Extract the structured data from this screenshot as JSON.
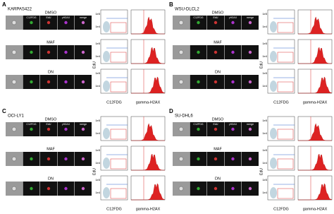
{
  "panels": [
    {
      "letter": "A",
      "cell_line": "KARPAS422",
      "columns": [
        "C12FDG",
        "EdU",
        "γH2AX",
        "merge"
      ],
      "conditions": [
        "DMSO",
        "MAF",
        "DN"
      ],
      "y_axis": "EdU",
      "x_axis": "C12FDG",
      "hist_axis": "gamma-H2AX",
      "y_ticks": [
        "1e5",
        "1e4"
      ]
    },
    {
      "letter": "B",
      "cell_line": "WSU-DLCL2",
      "columns": [
        "C12FDG",
        "EdU",
        "γH2AX",
        "merge"
      ],
      "conditions": [
        "DMSO",
        "MAF",
        "DN"
      ],
      "y_axis": "EdU",
      "x_axis": "C12FDG",
      "hist_axis": "gamma-H2AX",
      "y_ticks": [
        "1e5",
        "1e4"
      ]
    },
    {
      "letter": "C",
      "cell_line": "OCI-LY1",
      "columns": [
        "C12FDG",
        "EdU",
        "γH2AX",
        "merge"
      ],
      "conditions": [
        "DMSO",
        "MAF",
        "DN"
      ],
      "y_axis": "EdU",
      "x_axis": "C12FDG",
      "hist_axis": "gamma-H2AX",
      "y_ticks": [
        "1e5",
        "1e4"
      ]
    },
    {
      "letter": "D",
      "cell_line": "SU-DHL6",
      "columns": [
        "C12FDG",
        "EdU",
        "γH2AX",
        "merge"
      ],
      "conditions": [
        "DMSO",
        "MAF",
        "DN"
      ],
      "y_axis": "EdU",
      "x_axis": "C12FDG",
      "hist_axis": "gamma-H2AX",
      "y_ticks": [
        "1e5",
        "1e4"
      ]
    }
  ]
}
